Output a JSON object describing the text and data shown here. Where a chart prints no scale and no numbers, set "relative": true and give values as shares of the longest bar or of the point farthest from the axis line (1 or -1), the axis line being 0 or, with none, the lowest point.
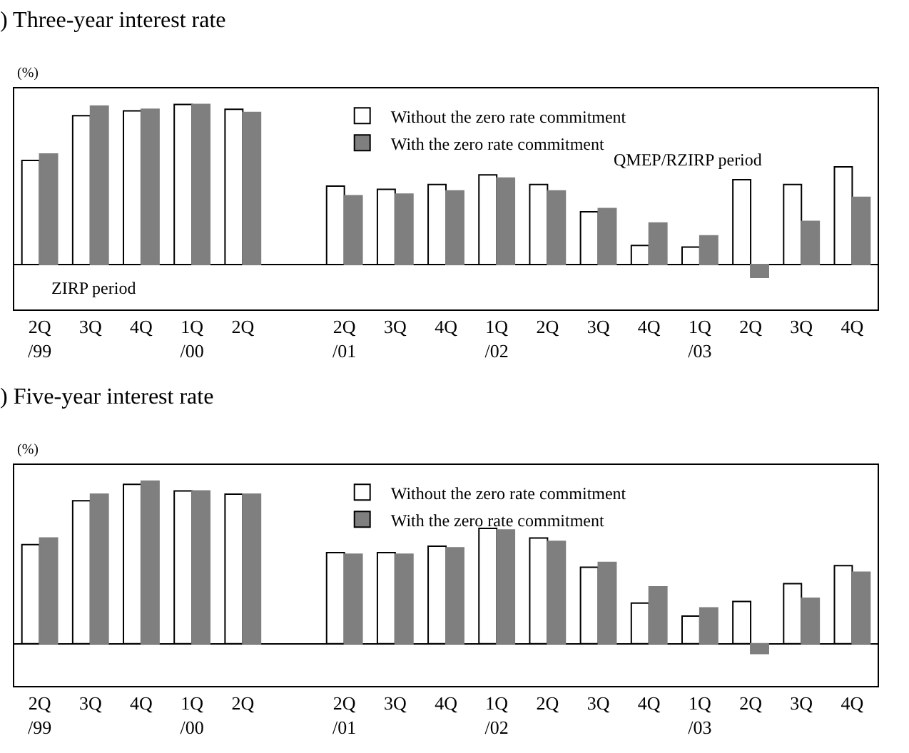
{
  "chart_data": [
    {
      "type": "bar",
      "title": ") Three-year interest rate",
      "ylabel": "(%)",
      "relative": true,
      "legend": "top right",
      "grid": false,
      "categories": [
        "2Q\n/99",
        "3Q",
        "4Q",
        "1Q\n/00",
        "2Q",
        null,
        "2Q\n/01",
        "3Q",
        "4Q",
        "1Q\n/02",
        "2Q",
        "3Q",
        "4Q",
        "1Q\n/03",
        "2Q",
        "3Q",
        "4Q"
      ],
      "series": [
        {
          "name": "Without the zero rate commitment",
          "color": "#ffffff",
          "values": [
            0.65,
            0.93,
            0.96,
            1,
            0.97,
            null,
            0.49,
            0.47,
            0.5,
            0.56,
            0.5,
            0.33,
            0.12,
            0.11,
            0.53,
            0.5,
            0.61
          ]
        },
        {
          "name": "With the zero rate commitment",
          "color": "#7f7f7f",
          "values": [
            0.69,
            0.99,
            0.97,
            1.0,
            0.95,
            null,
            0.43,
            0.44,
            0.46,
            0.54,
            0.46,
            0.35,
            0.26,
            0.18,
            -0.08,
            0.27,
            0.42
          ]
        }
      ],
      "annotations": [
        "ZIRP period",
        "QMEP/RZIRP period"
      ]
    },
    {
      "type": "bar",
      "title": ") Five-year interest rate",
      "ylabel": "(%)",
      "relative": true,
      "legend": "top right",
      "grid": false,
      "categories": [
        "2Q\n/99",
        "3Q",
        "4Q",
        "1Q\n/00",
        "2Q",
        null,
        "2Q\n/01",
        "3Q",
        "4Q",
        "1Q\n/02",
        "2Q",
        "3Q",
        "4Q",
        "1Q\n/03",
        "2Q",
        "3Q",
        "4Q"
      ],
      "series": [
        {
          "name": "Without the zero rate commitment",
          "color": "#ffffff",
          "values": [
            0.61,
            0.88,
            0.98,
            0.94,
            0.92,
            null,
            0.56,
            0.56,
            0.6,
            0.71,
            0.65,
            0.47,
            0.25,
            0.17,
            0.26,
            0.37,
            0.48
          ]
        },
        {
          "name": "With the zero rate commitment",
          "color": "#7f7f7f",
          "values": [
            0.65,
            0.92,
            1,
            0.94,
            0.92,
            null,
            0.55,
            0.55,
            0.59,
            0.7,
            0.63,
            0.5,
            0.35,
            0.22,
            -0.06,
            0.28,
            0.44
          ]
        }
      ]
    }
  ]
}
